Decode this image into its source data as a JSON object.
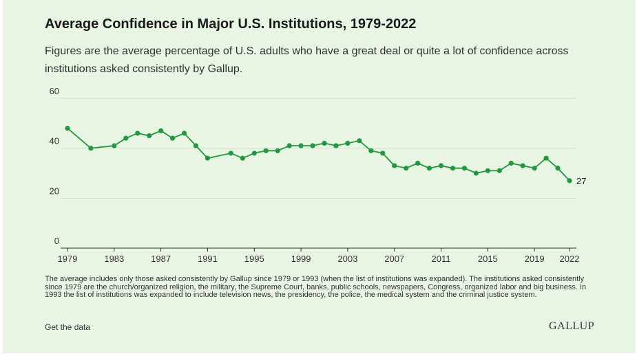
{
  "header": {
    "title": "Average Confidence in Major U.S. Institutions, 1979-2022",
    "subtitle": "Figures are the average percentage of U.S. adults who have a great deal or quite a lot of confidence across institutions asked consistently by Gallup."
  },
  "footer": {
    "note": "The average includes only those asked consistently by Gallup since 1979 or 1993 (when the list of institutions was expanded). The institutions asked consistently since 1979 are the church/organized religion, the military, the Supreme Court, banks, public schools, newspapers, Congress, organized labor and big business. In 1993 the list of institutions was expanded to include television news, the presidency, the police, the medical system and the criminal justice system.",
    "get_data_label": "Get the data",
    "logo": "GALLUP"
  },
  "colors": {
    "line": "#1e9a3c",
    "grid": "#cfdcc9",
    "axis": "#333333"
  },
  "chart_data": {
    "type": "line",
    "title": "Average Confidence in Major U.S. Institutions, 1979-2022",
    "xlabel": "",
    "ylabel": "",
    "xlim": [
      1979,
      2022
    ],
    "ylim": [
      0,
      60
    ],
    "y_ticks": [
      0,
      20,
      40,
      60
    ],
    "x_ticks": [
      1979,
      1983,
      1987,
      1991,
      1995,
      1999,
      2003,
      2007,
      2011,
      2015,
      2019,
      2022
    ],
    "grid": true,
    "end_label": "27",
    "series": [
      {
        "name": "Average confidence",
        "x": [
          1979,
          1981,
          1983,
          1984,
          1985,
          1986,
          1987,
          1988,
          1989,
          1990,
          1991,
          1993,
          1994,
          1995,
          1996,
          1997,
          1998,
          1999,
          2000,
          2001,
          2002,
          2003,
          2004,
          2005,
          2006,
          2007,
          2008,
          2009,
          2010,
          2011,
          2012,
          2013,
          2014,
          2015,
          2016,
          2017,
          2018,
          2019,
          2020,
          2021,
          2022
        ],
        "values": [
          48,
          40,
          41,
          44,
          46,
          45,
          47,
          44,
          46,
          41,
          36,
          38,
          36,
          38,
          39,
          39,
          41,
          41,
          41,
          42,
          41,
          42,
          43,
          39,
          38,
          33,
          32,
          34,
          32,
          33,
          32,
          32,
          30,
          31,
          31,
          34,
          33,
          32,
          36,
          32,
          27
        ]
      }
    ]
  }
}
